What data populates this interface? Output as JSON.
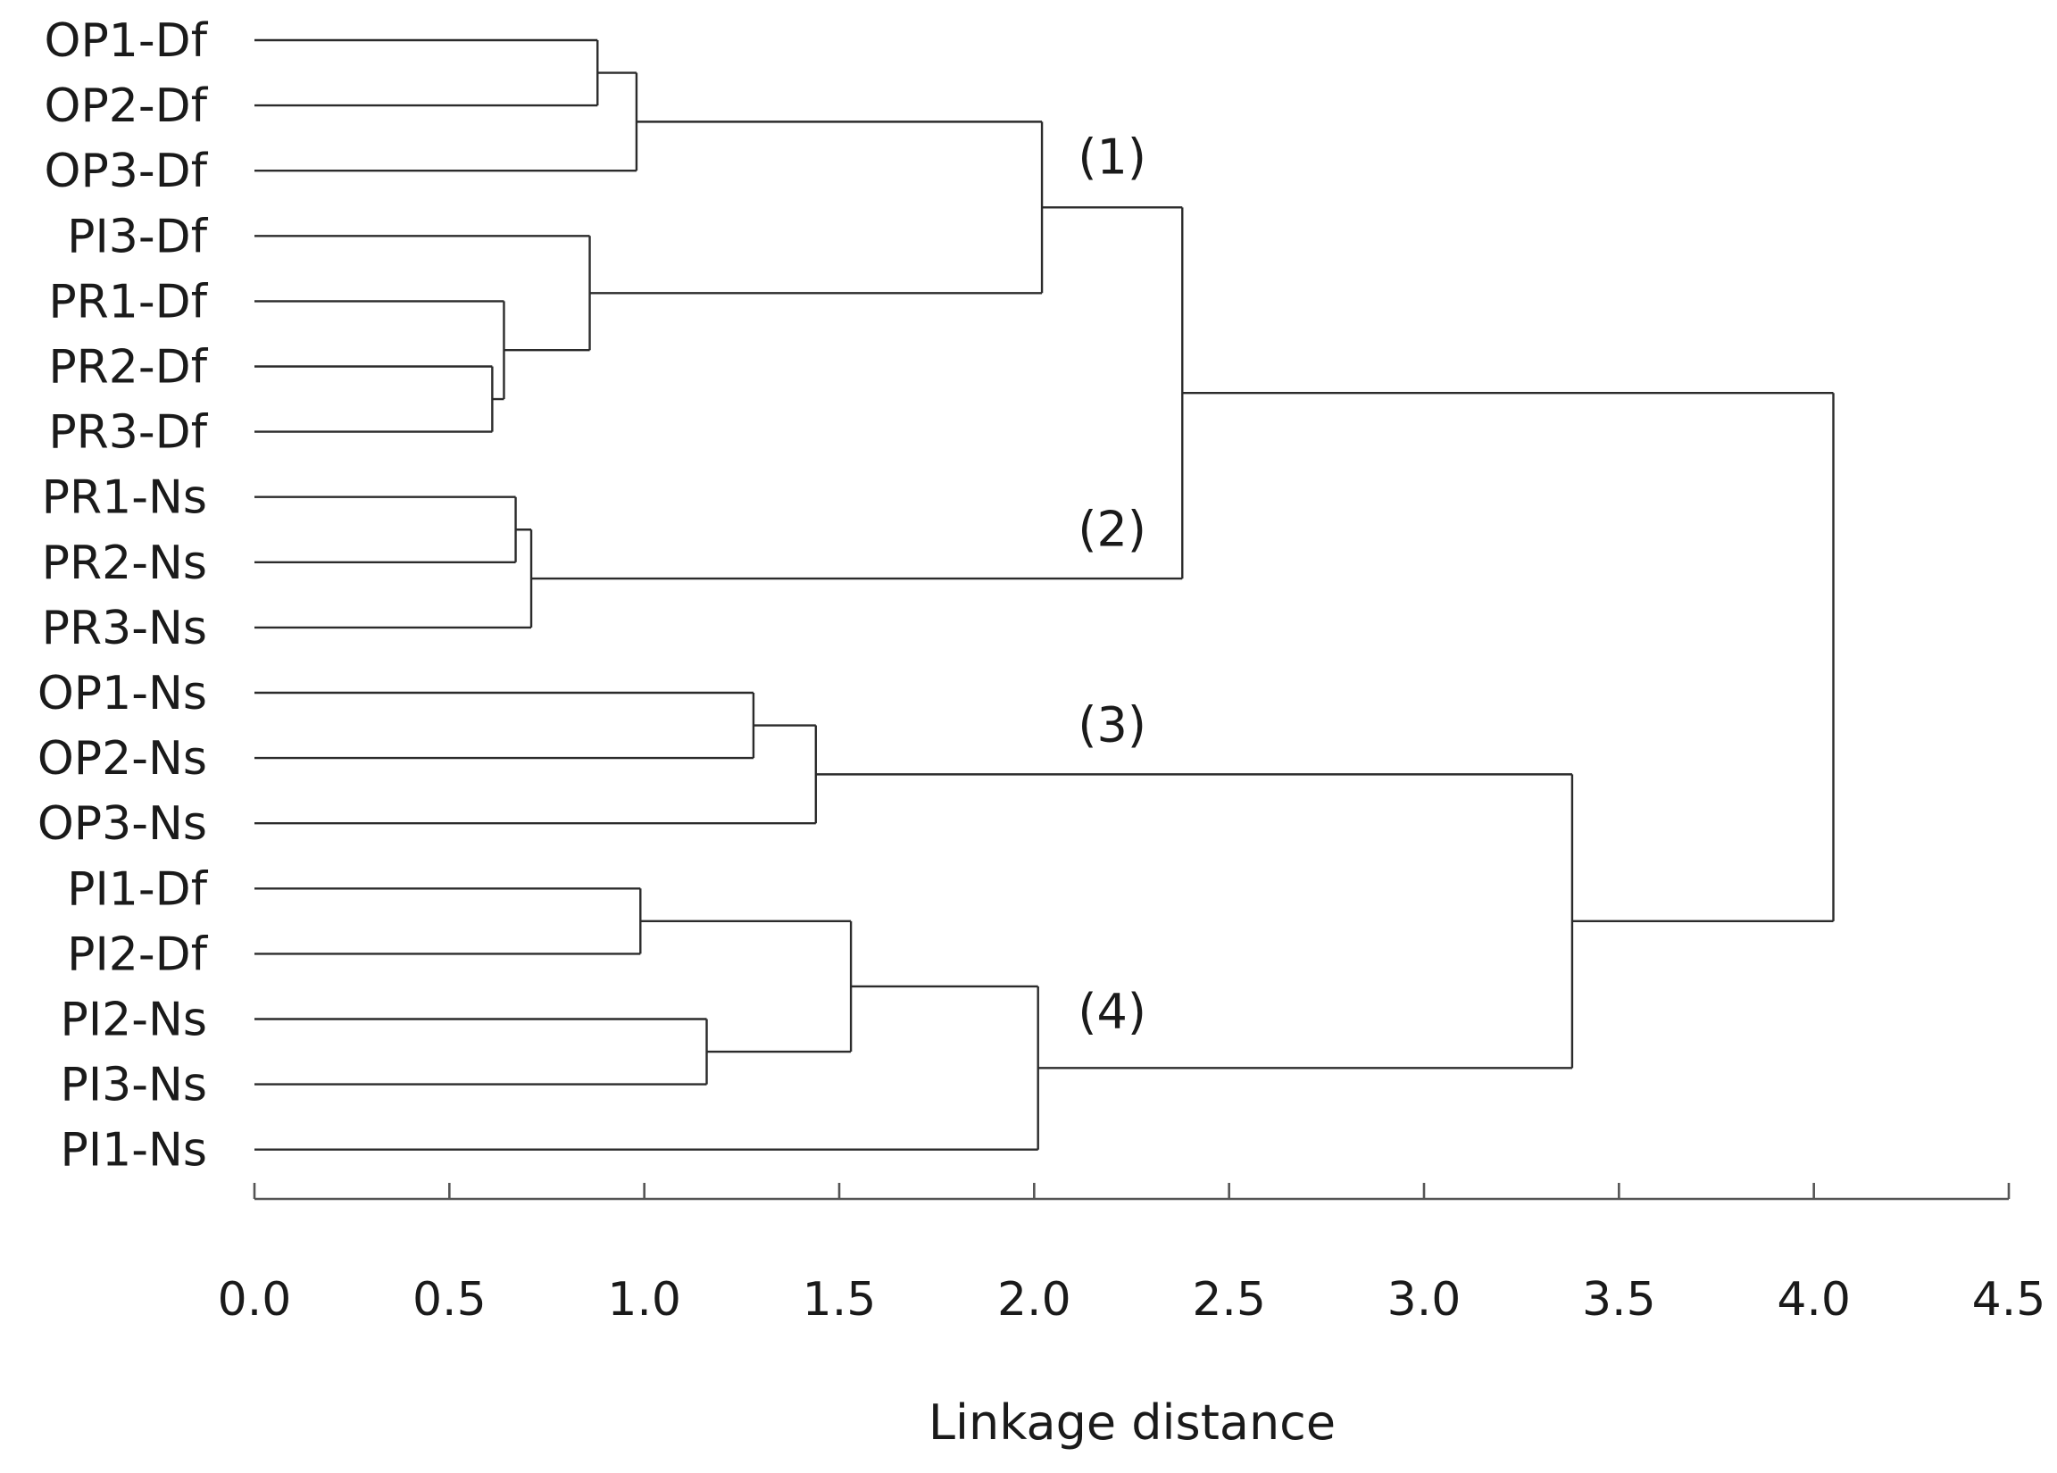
{
  "chart_data": {
    "type": "dendrogram",
    "orientation": "horizontal",
    "xlabel": "Linkage distance",
    "xlim": [
      0,
      4.5
    ],
    "xticks": [
      0.0,
      0.5,
      1.0,
      1.5,
      2.0,
      2.5,
      3.0,
      3.5,
      4.0,
      4.5
    ],
    "xtick_labels": [
      "0.0",
      "0.5",
      "1.0",
      "1.5",
      "2.0",
      "2.5",
      "3.0",
      "3.5",
      "4.0",
      "4.5"
    ],
    "grid": false,
    "leaves": [
      "OP1-Df",
      "OP2-Df",
      "OP3-Df",
      "PI3-Df",
      "PR1-Df",
      "PR2-Df",
      "PR3-Df",
      "PR1-Ns",
      "PR2-Ns",
      "PR3-Ns",
      "OP1-Ns",
      "OP2-Ns",
      "OP3-Ns",
      "PI1-Df",
      "PI2-Df",
      "PI2-Ns",
      "PI3-Ns",
      "PI1-Ns"
    ],
    "merges": [
      {
        "id": "PR23Df",
        "children": [
          "PR2-Df",
          "PR3-Df"
        ],
        "distance": 0.61
      },
      {
        "id": "PR123Df",
        "children": [
          "PR1-Df",
          "PR23Df"
        ],
        "distance": 0.64
      },
      {
        "id": "PRNs12",
        "children": [
          "PR1-Ns",
          "PR2-Ns"
        ],
        "distance": 0.67
      },
      {
        "id": "PRNs",
        "children": [
          "PRNs12",
          "PR3-Ns"
        ],
        "distance": 0.71
      },
      {
        "id": "PIPR",
        "children": [
          "PI3-Df",
          "PR123Df"
        ],
        "distance": 0.86
      },
      {
        "id": "OP12Df",
        "children": [
          "OP1-Df",
          "OP2-Df"
        ],
        "distance": 0.88
      },
      {
        "id": "OPDf",
        "children": [
          "OP12Df",
          "OP3-Df"
        ],
        "distance": 0.98
      },
      {
        "id": "PI12Df",
        "children": [
          "PI1-Df",
          "PI2-Df"
        ],
        "distance": 0.99
      },
      {
        "id": "PINs23",
        "children": [
          "PI2-Ns",
          "PI3-Ns"
        ],
        "distance": 1.16
      },
      {
        "id": "OPNs12",
        "children": [
          "OP1-Ns",
          "OP2-Ns"
        ],
        "distance": 1.28
      },
      {
        "id": "OPNs",
        "children": [
          "OPNs12",
          "OP3-Ns"
        ],
        "distance": 1.44
      },
      {
        "id": "PImix",
        "children": [
          "PI12Df",
          "PINs23"
        ],
        "distance": 1.53
      },
      {
        "id": "C4",
        "children": [
          "PImix",
          "PI1-Ns"
        ],
        "distance": 2.01
      },
      {
        "id": "C1",
        "children": [
          "OPDf",
          "PIPR"
        ],
        "distance": 2.02
      },
      {
        "id": "C12",
        "children": [
          "C1",
          "PRNs"
        ],
        "distance": 2.38
      },
      {
        "id": "C34",
        "children": [
          "OPNs",
          "C4"
        ],
        "distance": 3.38
      },
      {
        "id": "root",
        "children": [
          "C12",
          "C34"
        ],
        "distance": 4.05
      }
    ],
    "annotations": [
      {
        "text": "(1)",
        "at_distance": 2.2,
        "near_leaf_index": 1.8
      },
      {
        "text": "(2)",
        "at_distance": 2.2,
        "near_leaf_index": 7.5
      },
      {
        "text": "(3)",
        "at_distance": 2.2,
        "near_leaf_index": 10.5
      },
      {
        "text": "(4)",
        "at_distance": 2.2,
        "near_leaf_index": 14.9
      }
    ]
  }
}
